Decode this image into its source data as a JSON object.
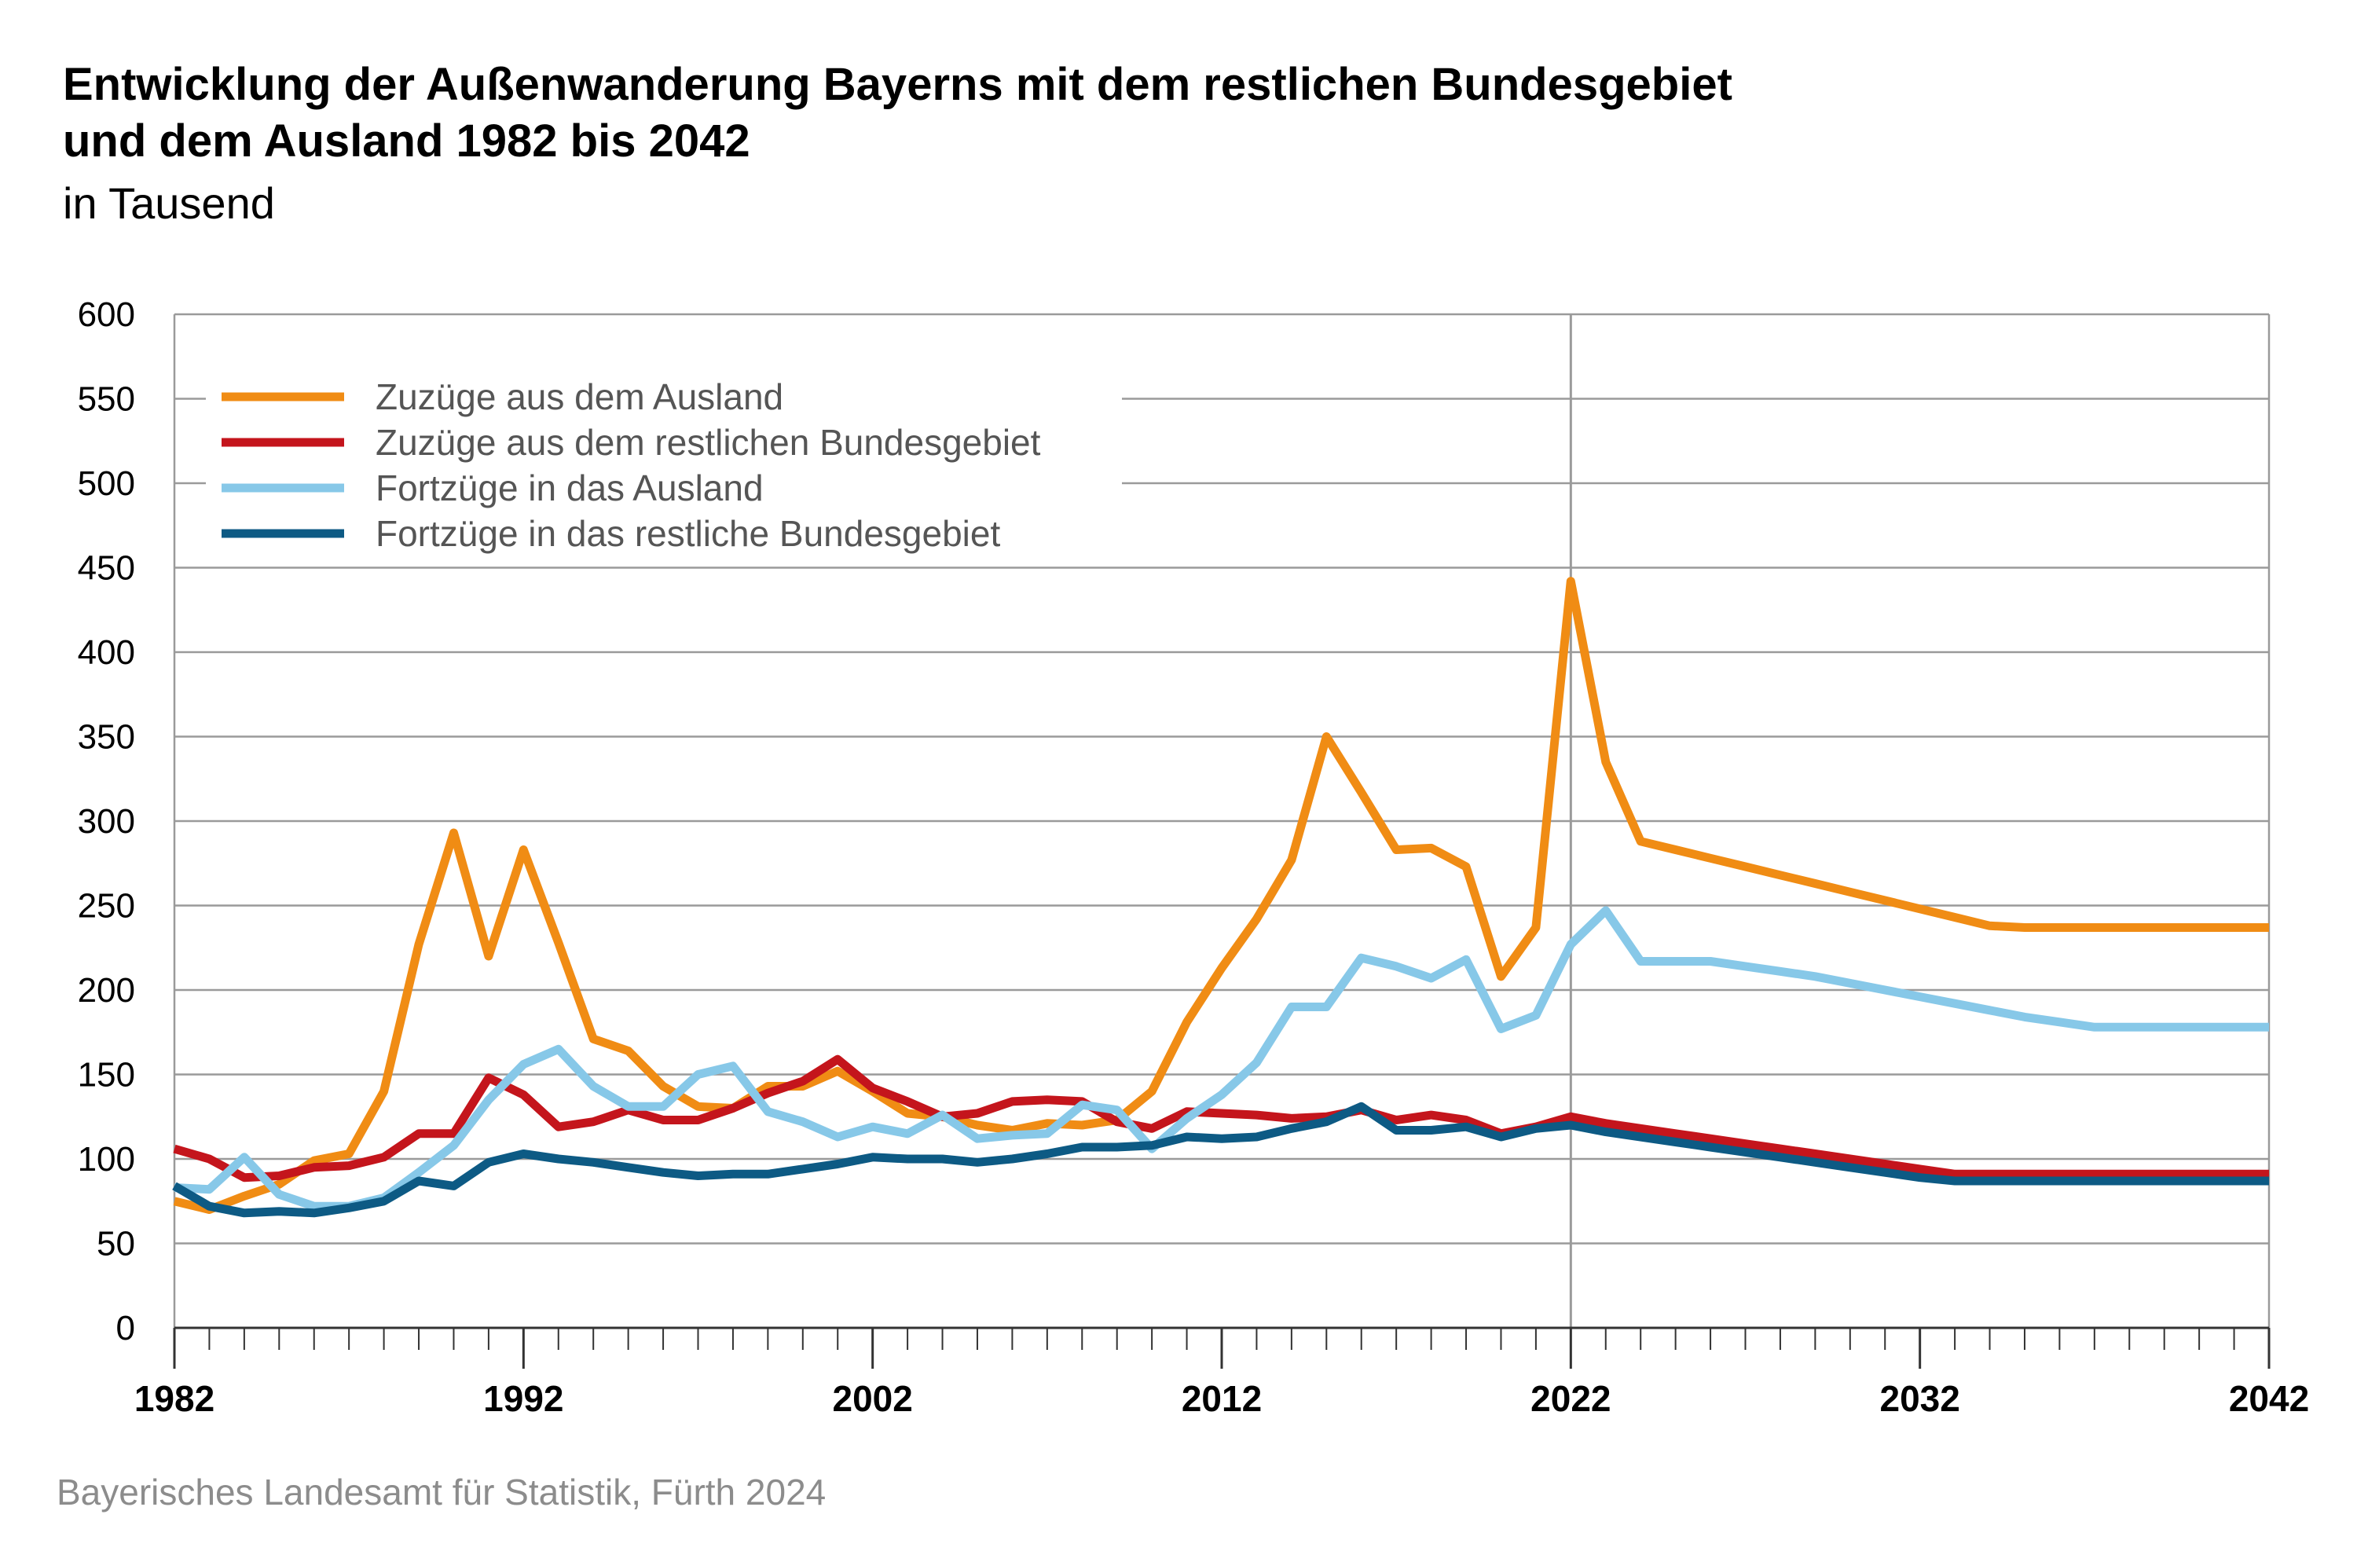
{
  "header": {
    "title_line1": "Entwicklung der Außenwanderung Bayerns mit dem restlichen Bundesgebiet",
    "title_line2": "und dem Ausland 1982 bis 2042",
    "subtitle": "in Tausend"
  },
  "footer": {
    "source": "Bayerisches Landesamt für Statistik, Fürth 2024"
  },
  "chart_data": {
    "type": "line",
    "title": "Entwicklung der Außenwanderung Bayerns mit dem restlichen Bundesgebiet und dem Ausland 1982 bis 2042",
    "subtitle": "in Tausend",
    "xlabel": "",
    "ylabel": "",
    "xlim": [
      1982,
      2042
    ],
    "ylim": [
      0,
      600
    ],
    "yticks": [
      0,
      50,
      100,
      150,
      200,
      250,
      300,
      350,
      400,
      450,
      500,
      550,
      600
    ],
    "xtick_labels": [
      "1982",
      "1992",
      "2002",
      "2012",
      "2022",
      "2032",
      "2042"
    ],
    "grid": true,
    "legend_position": "top-left",
    "reference_line_x": 2022,
    "x": [
      1982,
      1983,
      1984,
      1985,
      1986,
      1987,
      1988,
      1989,
      1990,
      1991,
      1992,
      1993,
      1994,
      1995,
      1996,
      1997,
      1998,
      1999,
      2000,
      2001,
      2002,
      2003,
      2004,
      2005,
      2006,
      2007,
      2008,
      2009,
      2010,
      2011,
      2012,
      2013,
      2014,
      2015,
      2016,
      2017,
      2018,
      2019,
      2020,
      2021,
      2022,
      2023,
      2024,
      2025,
      2026,
      2027,
      2028,
      2029,
      2030,
      2031,
      2032,
      2033,
      2034,
      2035,
      2036,
      2037,
      2038,
      2039,
      2040,
      2041,
      2042
    ],
    "series": [
      {
        "name": "Zuzüge aus dem Ausland",
        "color": "#f08c14",
        "values": [
          75,
          70,
          78,
          85,
          99,
          103,
          140,
          227,
          293,
          220,
          283,
          228,
          171,
          164,
          143,
          131,
          130,
          143,
          143,
          152,
          140,
          127,
          125,
          120,
          117,
          121,
          120,
          123,
          140,
          181,
          213,
          242,
          277,
          350,
          317,
          283,
          284,
          273,
          208,
          237,
          442,
          335,
          288,
          283,
          278,
          273,
          268,
          263,
          258,
          253,
          248,
          243,
          238,
          237,
          237,
          237,
          237,
          237,
          237,
          237,
          237
        ]
      },
      {
        "name": "Zuzüge aus dem restlichen Bundesgebiet",
        "color": "#c4151c",
        "values": [
          106,
          100,
          89,
          90,
          95,
          96,
          101,
          115,
          115,
          148,
          138,
          119,
          122,
          129,
          123,
          123,
          130,
          139,
          146,
          159,
          142,
          134,
          125,
          127,
          134,
          135,
          134,
          122,
          118,
          128,
          127,
          126,
          124,
          125,
          129,
          123,
          126,
          123,
          115,
          119,
          125,
          121,
          118,
          115,
          112,
          109,
          106,
          103,
          100,
          97,
          94,
          91,
          91,
          91,
          91,
          91,
          91,
          91,
          91,
          91,
          91
        ]
      },
      {
        "name": "Fortzüge in das Ausland",
        "color": "#87c8e8",
        "values": [
          83,
          82,
          101,
          79,
          72,
          72,
          77,
          92,
          108,
          135,
          156,
          165,
          143,
          131,
          131,
          150,
          155,
          128,
          122,
          113,
          119,
          115,
          126,
          112,
          114,
          115,
          132,
          129,
          106,
          124,
          138,
          157,
          190,
          190,
          219,
          214,
          207,
          218,
          177,
          185,
          227,
          247,
          217,
          217,
          217,
          214,
          211,
          208,
          204,
          200,
          196,
          192,
          188,
          184,
          181,
          178,
          178,
          178,
          178,
          178,
          178
        ]
      },
      {
        "name": "Fortzüge in das restliche Bundesgebiet",
        "color": "#0d5a84",
        "values": [
          84,
          72,
          68,
          69,
          68,
          71,
          75,
          87,
          84,
          98,
          103,
          100,
          98,
          95,
          92,
          90,
          91,
          91,
          94,
          97,
          101,
          100,
          100,
          98,
          100,
          103,
          107,
          107,
          108,
          113,
          112,
          113,
          118,
          122,
          131,
          117,
          117,
          119,
          113,
          118,
          120,
          116,
          113,
          110,
          107,
          104,
          101,
          98,
          95,
          92,
          89,
          87,
          87,
          87,
          87,
          87,
          87,
          87,
          87,
          87,
          87
        ]
      }
    ]
  }
}
